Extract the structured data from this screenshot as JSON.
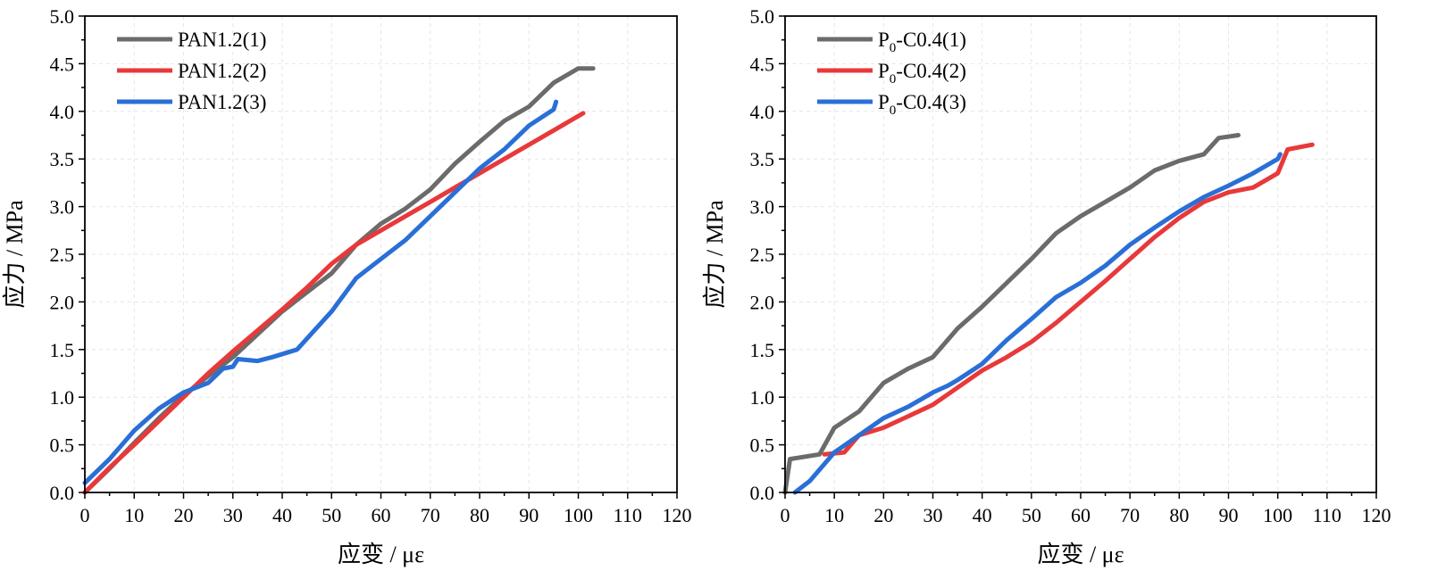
{
  "colors": {
    "gray": "#6b6b6b",
    "red": "#e8393a",
    "blue": "#2a6fd6"
  },
  "chart_data": [
    {
      "type": "line",
      "title": "",
      "xlabel": "应变 / με",
      "ylabel": "应力 / MPa",
      "xlim": [
        0,
        120
      ],
      "ylim": [
        0,
        5
      ],
      "xticks": [
        "0",
        "10",
        "20",
        "30",
        "40",
        "50",
        "60",
        "70",
        "80",
        "90",
        "100",
        "110",
        "120"
      ],
      "yticks": [
        "0.0",
        "0.5",
        "1.0",
        "1.5",
        "2.0",
        "2.5",
        "3.0",
        "3.5",
        "4.0",
        "4.5",
        "5.0"
      ],
      "legend_position": "top-left",
      "series": [
        {
          "name": "PAN1.2(1)",
          "legend_main": "PAN1.2(1)",
          "legend_sub": "",
          "legend_rest": "",
          "color": "#6b6b6b",
          "x": [
            0,
            5,
            10,
            15,
            20,
            25,
            30,
            35,
            40,
            45,
            50,
            55,
            60,
            65,
            70,
            75,
            80,
            85,
            90,
            95,
            100,
            103
          ],
          "y": [
            0,
            0.25,
            0.52,
            0.78,
            1.02,
            1.22,
            1.42,
            1.66,
            1.9,
            2.1,
            2.3,
            2.6,
            2.82,
            2.98,
            3.18,
            3.45,
            3.68,
            3.9,
            4.05,
            4.3,
            4.45,
            4.45
          ]
        },
        {
          "name": "PAN1.2(2)",
          "legend_main": "PAN1.2(2)",
          "legend_sub": "",
          "legend_rest": "",
          "color": "#e8393a",
          "x": [
            0,
            5,
            10,
            15,
            20,
            25,
            30,
            35,
            40,
            45,
            50,
            55,
            60,
            65,
            70,
            75,
            80,
            85,
            90,
            95,
            101
          ],
          "y": [
            0,
            0.26,
            0.5,
            0.75,
            1.0,
            1.25,
            1.48,
            1.7,
            1.92,
            2.15,
            2.4,
            2.6,
            2.75,
            2.9,
            3.05,
            3.2,
            3.35,
            3.5,
            3.65,
            3.8,
            3.98
          ]
        },
        {
          "name": "PAN1.2(3)",
          "legend_main": "PAN1.2(3)",
          "legend_sub": "",
          "legend_rest": "",
          "color": "#2a6fd6",
          "x": [
            0,
            5,
            10,
            15,
            20,
            25,
            28,
            30,
            31,
            35,
            38,
            43,
            50,
            55,
            60,
            65,
            70,
            75,
            80,
            85,
            90,
            95,
            95.5
          ],
          "y": [
            0.1,
            0.35,
            0.65,
            0.88,
            1.05,
            1.15,
            1.3,
            1.32,
            1.4,
            1.38,
            1.42,
            1.5,
            1.9,
            2.25,
            2.45,
            2.65,
            2.9,
            3.15,
            3.4,
            3.6,
            3.85,
            4.02,
            4.1
          ]
        }
      ]
    },
    {
      "type": "line",
      "title": "",
      "xlabel": "应变 / με",
      "ylabel": "应力 / MPa",
      "xlim": [
        0,
        120
      ],
      "ylim": [
        0,
        5
      ],
      "xticks": [
        "0",
        "10",
        "20",
        "30",
        "40",
        "50",
        "60",
        "70",
        "80",
        "90",
        "100",
        "110",
        "120"
      ],
      "yticks": [
        "0.0",
        "0.5",
        "1.0",
        "1.5",
        "2.0",
        "2.5",
        "3.0",
        "3.5",
        "4.0",
        "4.5",
        "5.0"
      ],
      "legend_position": "top-left",
      "series": [
        {
          "name": "P0-C0.4(1)",
          "legend_main": "P",
          "legend_sub": "0",
          "legend_rest": "-C0.4(1)",
          "color": "#6b6b6b",
          "x": [
            0,
            1,
            7,
            10,
            15,
            20,
            25,
            30,
            35,
            40,
            45,
            50,
            55,
            60,
            65,
            70,
            75,
            80,
            85,
            88,
            92
          ],
          "y": [
            0,
            0.35,
            0.4,
            0.68,
            0.85,
            1.15,
            1.3,
            1.42,
            1.72,
            1.95,
            2.2,
            2.45,
            2.72,
            2.9,
            3.05,
            3.2,
            3.38,
            3.48,
            3.55,
            3.72,
            3.75
          ]
        },
        {
          "name": "P0-C0.4(2)",
          "legend_main": "P",
          "legend_sub": "0",
          "legend_rest": "-C0.4(2)",
          "color": "#e8393a",
          "x": [
            8,
            12,
            15,
            20,
            25,
            30,
            35,
            40,
            45,
            50,
            55,
            60,
            65,
            70,
            75,
            80,
            85,
            90,
            95,
            100,
            102,
            107
          ],
          "y": [
            0.4,
            0.42,
            0.6,
            0.68,
            0.8,
            0.92,
            1.1,
            1.28,
            1.42,
            1.58,
            1.78,
            2.0,
            2.22,
            2.45,
            2.68,
            2.88,
            3.05,
            3.15,
            3.2,
            3.35,
            3.6,
            3.65
          ]
        },
        {
          "name": "P0-C0.4(3)",
          "legend_main": "P",
          "legend_sub": "0",
          "legend_rest": "-C0.4(3)",
          "color": "#2a6fd6",
          "x": [
            2,
            5,
            10,
            15,
            20,
            25,
            30,
            33,
            35,
            40,
            45,
            50,
            55,
            60,
            65,
            70,
            75,
            80,
            85,
            90,
            95,
            100,
            100.5
          ],
          "y": [
            0,
            0.12,
            0.42,
            0.6,
            0.78,
            0.9,
            1.05,
            1.12,
            1.18,
            1.35,
            1.6,
            1.82,
            2.05,
            2.2,
            2.38,
            2.6,
            2.78,
            2.95,
            3.1,
            3.22,
            3.35,
            3.5,
            3.55
          ]
        }
      ]
    }
  ]
}
